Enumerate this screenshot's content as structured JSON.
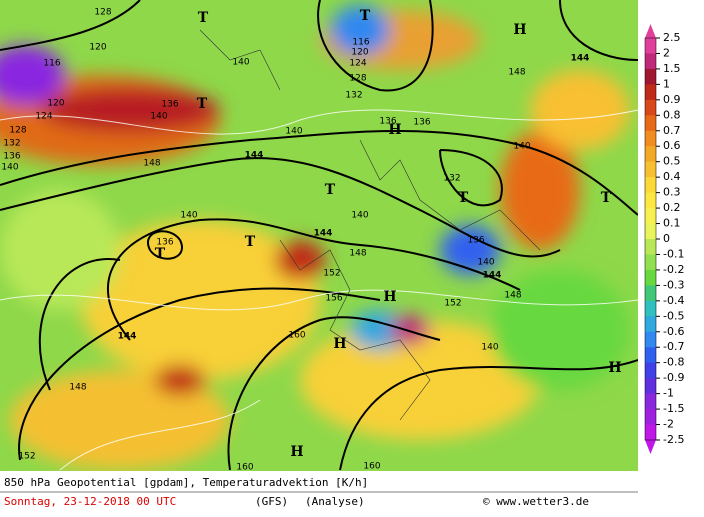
{
  "map": {
    "title": "850 hPa Geopotential [gpdam], Temperaturadvektion [K/h]",
    "date": "Sonntag, 23-12-2018  00 UTC",
    "model": "(GFS)",
    "run": "(Analyse)",
    "credit": "© www.wetter3.de",
    "contour_labels": [
      "128",
      "120",
      "116",
      "120",
      "124",
      "128",
      "132",
      "136",
      "140",
      "148",
      "140",
      "136",
      "144",
      "148",
      "152",
      "160",
      "160",
      "156",
      "152",
      "148",
      "144",
      "140",
      "140",
      "144",
      "140",
      "136",
      "140",
      "132",
      "128",
      "124",
      "120",
      "116",
      "136",
      "136",
      "132",
      "140",
      "148",
      "144",
      "136",
      "140",
      "144",
      "148",
      "152",
      "140",
      "160"
    ],
    "centers": [
      "T",
      "T",
      "T",
      "T",
      "T",
      "T",
      "T",
      "T",
      "H",
      "H",
      "H",
      "H",
      "H",
      "H"
    ]
  },
  "colorbar": {
    "labels": [
      "2.5",
      "2",
      "1.5",
      "1",
      "0.9",
      "0.8",
      "0.7",
      "0.6",
      "0.5",
      "0.4",
      "0.3",
      "0.2",
      "0.1",
      "0",
      "-0.1",
      "-0.2",
      "-0.3",
      "-0.4",
      "-0.5",
      "-0.6",
      "-0.7",
      "-0.8",
      "-0.9",
      "-1",
      "-1.5",
      "-2",
      "-2.5"
    ],
    "colors": [
      "#e0409a",
      "#c0287a",
      "#a01830",
      "#c02a18",
      "#d84818",
      "#e86a18",
      "#f08c20",
      "#f4a828",
      "#f8c030",
      "#fcd838",
      "#fce840",
      "#f8f050",
      "#e8f45a",
      "#b8e858",
      "#90e050",
      "#68d840",
      "#40c878",
      "#30c0c0",
      "#30a8e0",
      "#3088f0",
      "#3060f0",
      "#4040e8",
      "#6030e0",
      "#8a28e0",
      "#a020e0",
      "#c018e8"
    ]
  }
}
